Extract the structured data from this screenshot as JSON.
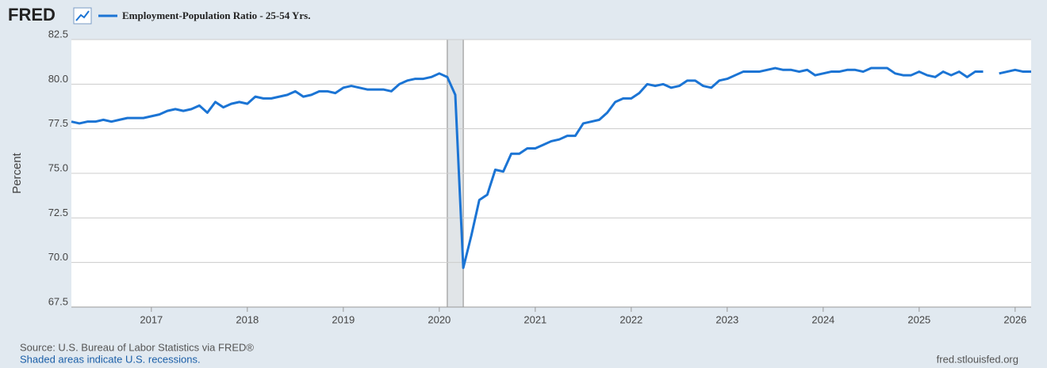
{
  "chart_data": {
    "type": "line",
    "logo": "FRED",
    "series": [
      {
        "name": "Employment-Population Ratio - 25-54 Yrs.",
        "color": "#1b74d4",
        "values": [
          77.9,
          77.8,
          77.9,
          77.9,
          78.0,
          77.9,
          78.0,
          78.1,
          78.1,
          78.1,
          78.2,
          78.3,
          78.5,
          78.6,
          78.5,
          78.6,
          78.8,
          78.4,
          79.0,
          78.7,
          78.9,
          79.0,
          78.9,
          79.3,
          79.2,
          79.2,
          79.3,
          79.4,
          79.6,
          79.3,
          79.4,
          79.6,
          79.6,
          79.5,
          79.8,
          79.9,
          79.8,
          79.7,
          79.7,
          79.7,
          79.6,
          80.0,
          80.2,
          80.3,
          80.3,
          80.4,
          80.6,
          80.4,
          79.4,
          69.7,
          71.5,
          73.5,
          73.8,
          75.2,
          75.1,
          76.1,
          76.1,
          76.4,
          76.4,
          76.6,
          76.8,
          76.9,
          77.1,
          77.1,
          77.8,
          77.9,
          78.0,
          78.4,
          79.0,
          79.2,
          79.2,
          79.5,
          80.0,
          79.9,
          80.0,
          79.8,
          79.9,
          80.2,
          80.2,
          79.9,
          79.8,
          80.2,
          80.3,
          80.5,
          80.7,
          80.7,
          80.7,
          80.8,
          80.9,
          80.8,
          80.8,
          80.7,
          80.8,
          80.5,
          80.6,
          80.7,
          80.7,
          80.8,
          80.8,
          80.7,
          80.9,
          80.9,
          80.9,
          80.6,
          80.5,
          80.5,
          80.7,
          80.5,
          80.4,
          80.7,
          80.5,
          80.7,
          80.4,
          80.7,
          80.7,
          null,
          80.6,
          80.7,
          80.8,
          80.7,
          80.7
        ]
      }
    ],
    "categories": [
      null,
      null,
      null,
      null,
      null,
      null,
      null,
      null,
      null,
      null,
      "2017",
      null,
      null,
      null,
      null,
      null,
      null,
      null,
      null,
      null,
      null,
      null,
      "2018",
      null,
      null,
      null,
      null,
      null,
      null,
      null,
      null,
      null,
      null,
      null,
      "2019",
      null,
      null,
      null,
      null,
      null,
      null,
      null,
      null,
      null,
      null,
      null,
      "2020",
      null,
      null,
      null,
      null,
      null,
      null,
      null,
      null,
      null,
      null,
      null,
      "2021",
      null,
      null,
      null,
      null,
      null,
      null,
      null,
      null,
      null,
      null,
      null,
      "2022",
      null,
      null,
      null,
      null,
      null,
      null,
      null,
      null,
      null,
      null,
      null,
      "2023",
      null,
      null,
      null,
      null,
      null,
      null,
      null,
      null,
      null,
      null,
      null,
      "2024",
      null,
      null,
      null,
      null,
      null,
      null,
      null,
      null,
      null,
      null,
      null,
      "2025",
      null,
      null,
      null,
      null,
      null,
      null,
      null,
      null,
      null,
      null,
      null,
      "2026",
      null,
      null
    ],
    "recession_shading": [
      [
        47,
        49
      ]
    ],
    "ylabel": "Percent",
    "ylim": [
      67.5,
      82.5
    ],
    "yticks": [
      67.5,
      {
        "value": 70,
        "label": "70.0"
      },
      72.5,
      {
        "value": 75,
        "label": "75.0"
      },
      77.5,
      {
        "value": 80,
        "label": "80.0"
      },
      82.5
    ],
    "grid": true,
    "source": "Source: U.S. Bureau of Labor Statistics via FRED®",
    "note": "Shaded areas indicate U.S. recessions.",
    "url": "fred.stlouisfed.org"
  }
}
